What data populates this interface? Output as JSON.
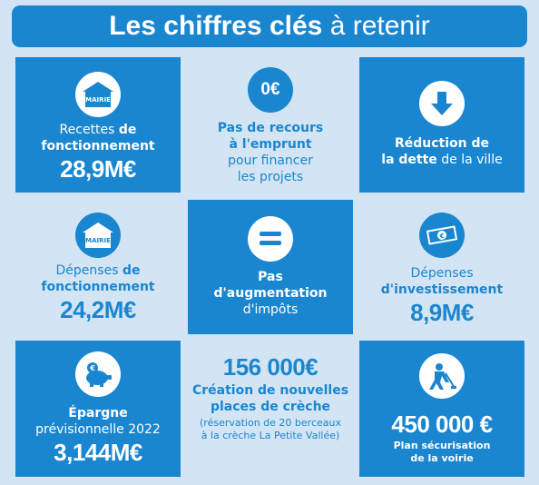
{
  "banner": {
    "bold": "Les chiffres clés",
    "rest": " à retenir"
  },
  "tiles": {
    "recettes": {
      "icon": "mairie-icon",
      "mairie_label": "MAIRIE",
      "line1_plain": "Recettes ",
      "line1_bold": "de",
      "line2_bold": "fonctionnement",
      "value": "28,9M€"
    },
    "emprunt": {
      "icon": "zero-euro-icon",
      "icon_text": "0€",
      "line1_bold": "Pas de recours",
      "line2_bold": "à l'emprunt",
      "line3": "pour financer",
      "line4": "les projets"
    },
    "dette": {
      "icon": "arrow-down-icon",
      "line1_bold": "Réduction de",
      "line2_bold": "la dette",
      "line2_rest": " de la ville"
    },
    "depenses_fonct": {
      "icon": "mairie-icon",
      "mairie_label": "MAIRIE",
      "line1_plain": "Dépenses ",
      "line1_bold": "de",
      "line2_bold": "fonctionnement",
      "value": "24,2M€"
    },
    "impots": {
      "icon": "equal-icon",
      "line1_bold": "Pas",
      "line2_bold": "d'augmentation",
      "line3": "d'impôts"
    },
    "investissement": {
      "icon": "banknote-icon",
      "line1": "Dépenses",
      "line2_bold": "d'investissement",
      "value": "8,9M€"
    },
    "epargne": {
      "icon": "piggy-bank-icon",
      "line1_bold": "Épargne",
      "line2": "prévisionnelle 2022",
      "value": "3,144M€"
    },
    "creche": {
      "value": "156 000€",
      "line1_bold": "Création de nouvelles",
      "line2_bold": "places de crèche",
      "note1": "(réservation de 20 berceaux",
      "note2": "à la crèche La Petite Vallée)"
    },
    "voirie": {
      "icon": "roadwork-icon",
      "value": "450 000 €",
      "line1_bold": "Plan sécurisation",
      "line2_bold": "de la voirie"
    }
  }
}
